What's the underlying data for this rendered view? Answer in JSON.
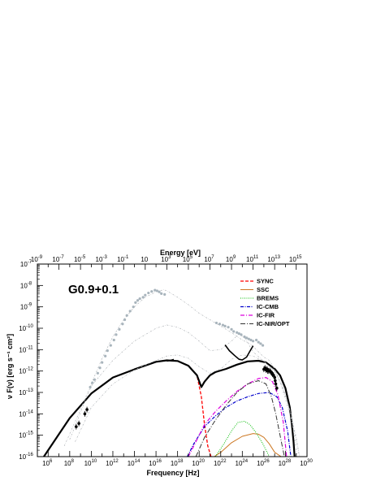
{
  "chart_data": {
    "type": "line",
    "title": "G0.9+0.1",
    "xlabel": "Frequency [Hz]",
    "ylabel": "ν F(ν) [erg s⁻¹ cm²]",
    "x2label": "Energy [eV]",
    "xscale": "log",
    "yscale": "log",
    "xlim": [
      100000.0,
      1e+30
    ],
    "ylim": [
      1e-16,
      1e-07
    ],
    "x2lim": [
      1e-09,
      1e+16
    ],
    "x_ticks": [
      {
        "base": "10",
        "exp": "6"
      },
      {
        "base": "10",
        "exp": "8"
      },
      {
        "base": "10",
        "exp": "10"
      },
      {
        "base": "10",
        "exp": "12"
      },
      {
        "base": "10",
        "exp": "14"
      },
      {
        "base": "10",
        "exp": "16"
      },
      {
        "base": "10",
        "exp": "18"
      },
      {
        "base": "10",
        "exp": "20"
      },
      {
        "base": "10",
        "exp": "22"
      },
      {
        "base": "10",
        "exp": "24"
      },
      {
        "base": "10",
        "exp": "26"
      },
      {
        "base": "10",
        "exp": "28"
      },
      {
        "base": "10",
        "exp": "30"
      }
    ],
    "x2_ticks": [
      {
        "base": "10",
        "exp": "-9"
      },
      {
        "base": "10",
        "exp": "-7"
      },
      {
        "base": "10",
        "exp": "-5"
      },
      {
        "base": "10",
        "exp": "-3"
      },
      {
        "base": "10",
        "exp": "-1"
      },
      {
        "base": "10",
        "exp": ""
      },
      {
        "base": "10",
        "exp": "3"
      },
      {
        "base": "10",
        "exp": "5"
      },
      {
        "base": "10",
        "exp": "7"
      },
      {
        "base": "10",
        "exp": "9"
      },
      {
        "base": "10",
        "exp": "11"
      },
      {
        "base": "10",
        "exp": "13"
      },
      {
        "base": "10",
        "exp": "15"
      }
    ],
    "y_ticks": [
      {
        "base": "10",
        "exp": "-7"
      },
      {
        "base": "10",
        "exp": "-8"
      },
      {
        "base": "10",
        "exp": "-9"
      },
      {
        "base": "10",
        "exp": "-10"
      },
      {
        "base": "10",
        "exp": "-11"
      },
      {
        "base": "10",
        "exp": "-12"
      },
      {
        "base": "10",
        "exp": "-13"
      },
      {
        "base": "10",
        "exp": "-14"
      },
      {
        "base": "10",
        "exp": "-15"
      },
      {
        "base": "10",
        "exp": "-16"
      }
    ],
    "legend": {
      "placement": "top-right"
    },
    "colors": {
      "sync": "#ff0000",
      "ssc": "#cc7722",
      "brems": "#00bb00",
      "ic_cmb": "#0000cc",
      "ic_fir": "#dd00dd",
      "ic_nir": "#333333",
      "total": "#000000",
      "sensitivity": "#b0b4b8"
    },
    "series": [
      {
        "name": "SYNC",
        "style": "dashed",
        "color": "#ff0000",
        "x_log": [
          5.6,
          8,
          10,
          12,
          14,
          16,
          17,
          18,
          19,
          19.8,
          20.2,
          20.5,
          20.8,
          21.1
        ],
        "y_log": [
          -16,
          -14.2,
          -13.05,
          -12.3,
          -11.92,
          -11.57,
          -11.5,
          -11.53,
          -11.75,
          -12.2,
          -13.2,
          -14.5,
          -15.5,
          -16
        ]
      },
      {
        "name": "SSC",
        "style": "solid",
        "color": "#cc7722",
        "x_log": [
          21.4,
          22,
          23,
          24,
          25,
          25.5,
          26,
          26.5,
          27,
          27.6
        ],
        "y_log": [
          -16,
          -15.8,
          -15.35,
          -15.05,
          -14.92,
          -14.95,
          -15.1,
          -15.4,
          -15.8,
          -16
        ]
      },
      {
        "name": "BREMS",
        "style": "dotted",
        "color": "#00bb00",
        "x_log": [
          21.5,
          22.3,
          23,
          23.6,
          24.2,
          24.7,
          25.3,
          25.9,
          26.5
        ],
        "y_log": [
          -16,
          -15.4,
          -14.8,
          -14.4,
          -14.35,
          -14.5,
          -14.9,
          -15.4,
          -16
        ]
      },
      {
        "name": "IC-CMB",
        "style": "dashdot",
        "color": "#0000cc",
        "x_log": [
          18.9,
          19.5,
          20.5,
          21.5,
          22.5,
          23.5,
          24.5,
          25.5,
          26.5,
          27.2,
          27.7,
          28.2,
          28.5
        ],
        "y_log": [
          -16,
          -15.4,
          -14.6,
          -14.1,
          -13.7,
          -13.4,
          -13.2,
          -13.05,
          -13.0,
          -13.2,
          -13.7,
          -14.8,
          -16
        ]
      },
      {
        "name": "IC-FIR",
        "style": "dashdot2",
        "color": "#dd00dd",
        "x_log": [
          19.0,
          19.7,
          20.5,
          21.5,
          22.5,
          23.5,
          24.5,
          25.5,
          26.2,
          26.8,
          27.3,
          27.8,
          28.1
        ],
        "y_log": [
          -16,
          -15.3,
          -14.5,
          -13.9,
          -13.4,
          -12.95,
          -12.6,
          -12.35,
          -12.3,
          -12.5,
          -13.1,
          -14.4,
          -16
        ]
      },
      {
        "name": "IC-NIR/OPT",
        "style": "longdash",
        "color": "#333333",
        "x_log": [
          19.7,
          20.5,
          21.5,
          22.5,
          23.5,
          24.5,
          25.5,
          26.2,
          26.7,
          27.1,
          27.5,
          27.9
        ],
        "y_log": [
          -16,
          -15.1,
          -14.3,
          -13.6,
          -13.0,
          -12.6,
          -12.45,
          -12.6,
          -13.2,
          -14.0,
          -15.0,
          -16
        ]
      },
      {
        "name": "",
        "style": "thick",
        "color": "#000000",
        "x_log": [
          5.6,
          8,
          10,
          12,
          14,
          16,
          17,
          18,
          19,
          19.8,
          20.2,
          20.5,
          21,
          21.5,
          22.5,
          23.5,
          24.5,
          25.5,
          26.2,
          27,
          27.5,
          28,
          28.4,
          28.6,
          28.75,
          28.85
        ],
        "y_log": [
          -16,
          -14.2,
          -13.05,
          -12.3,
          -11.92,
          -11.57,
          -11.5,
          -11.53,
          -11.75,
          -12.2,
          -12.75,
          -12.5,
          -12.2,
          -12.05,
          -11.9,
          -11.7,
          -11.55,
          -11.52,
          -11.6,
          -11.9,
          -12.2,
          -12.8,
          -13.7,
          -14.5,
          -15.3,
          -16
        ]
      },
      {
        "name": "",
        "style": "faint",
        "color": "#b0b4b8",
        "x_log": [
          7.5,
          9,
          10,
          11,
          12,
          13,
          14,
          15,
          16,
          16.7,
          17,
          18,
          19,
          20,
          21,
          22,
          23,
          24,
          24.8,
          25.2,
          25.6,
          26,
          26.5,
          27,
          27.5,
          28,
          28.5,
          29,
          29.3
        ],
        "y_log": [
          -15.5,
          -13.8,
          -12.6,
          -11.4,
          -10.4,
          -9.6,
          -9.0,
          -8.55,
          -8.3,
          -8.2,
          -8.25,
          -8.55,
          -8.9,
          -9.3,
          -9.6,
          -9.9,
          -10.2,
          -10.55,
          -10.75,
          -10.95,
          -11.15,
          -11.35,
          -11.5,
          -11.9,
          -12.5,
          -13.3,
          -14.2,
          -15.2,
          -16
        ]
      },
      {
        "name": "",
        "style": "faint",
        "color": "#b0b4b8",
        "x_log": [
          8,
          10,
          12,
          14,
          16,
          17,
          18,
          19,
          20,
          21,
          22,
          23,
          23.7,
          24.3,
          25,
          26,
          27,
          27.7,
          28.4,
          29,
          29.3
        ],
        "y_log": [
          -15.2,
          -12.7,
          -11.5,
          -10.6,
          -10.0,
          -9.85,
          -9.95,
          -10.2,
          -10.6,
          -11.05,
          -11.0,
          -10.6,
          -10.25,
          -10.5,
          -11.1,
          -11.55,
          -12.0,
          -12.7,
          -13.8,
          -15.1,
          -16
        ]
      },
      {
        "name": "",
        "style": "faint",
        "color": "#b0b4b8",
        "x_log": [
          8.5,
          10,
          12,
          14,
          16,
          17,
          18,
          19,
          20,
          21,
          22,
          23,
          24,
          25,
          26,
          27,
          27.8,
          28.5,
          29.1
        ],
        "y_log": [
          -15.3,
          -13.7,
          -12.6,
          -11.95,
          -11.5,
          -11.3,
          -11.25,
          -11.4,
          -11.8,
          -12.1,
          -11.9,
          -11.45,
          -11.25,
          -11.3,
          -11.55,
          -12.0,
          -12.8,
          -14.0,
          -16
        ]
      },
      {
        "name": "",
        "style": "sensitivity",
        "color": "#000000",
        "x_log": [
          22.4,
          22.8,
          23.3,
          23.7,
          24.0,
          24.4,
          24.7,
          25.0
        ],
        "y_log": [
          -10.78,
          -11.05,
          -11.28,
          -11.45,
          -11.48,
          -11.35,
          -11.08,
          -10.82
        ]
      },
      {
        "name": "",
        "style": "sensitivity",
        "color": "#000000",
        "x_log": [
          17.0,
          17.35,
          17.65
        ],
        "y_log": [
          -11.53,
          -11.5,
          -11.46
        ]
      }
    ],
    "points_gray": {
      "x_log": [
        9.9,
        10.1,
        10.3,
        10.6,
        10.8,
        11.0,
        11.3,
        11.5,
        11.8,
        12.1,
        12.3,
        12.6,
        12.9,
        13.1,
        13.3,
        13.6,
        13.9,
        14.1,
        14.3,
        14.5,
        14.8,
        15.0,
        15.3,
        15.6,
        15.9,
        16.1,
        16.3,
        16.5,
        16.8,
        21.6,
        21.9,
        22.2,
        22.4,
        22.7,
        23.0,
        23.2,
        23.5,
        23.7,
        23.9,
        24.2,
        24.4,
        24.6,
        24.8,
        25.0,
        25.3,
        25.5,
        25.7,
        25.9
      ],
      "y_log": [
        -12.75,
        -12.55,
        -12.4,
        -12.1,
        -11.85,
        -11.6,
        -11.3,
        -11.05,
        -10.8,
        -10.55,
        -10.3,
        -10.05,
        -9.8,
        -9.6,
        -9.4,
        -9.2,
        -9.0,
        -8.8,
        -8.7,
        -8.62,
        -8.55,
        -8.45,
        -8.35,
        -8.28,
        -8.22,
        -8.25,
        -8.3,
        -8.38,
        -8.42,
        -9.75,
        -9.8,
        -9.85,
        -9.9,
        -9.95,
        -10.05,
        -10.15,
        -10.2,
        -10.25,
        -10.3,
        -10.4,
        -10.45,
        -10.5,
        -10.55,
        -10.6,
        -10.55,
        -10.65,
        -10.72,
        -10.8
      ]
    },
    "points_data": {
      "x_log": [
        8.6,
        8.85,
        9.4,
        9.6,
        26.0,
        26.1,
        26.2,
        26.3,
        26.35,
        26.45,
        26.55,
        26.65,
        26.75,
        26.8,
        26.9,
        27.0,
        27.05,
        27.1,
        27.2
      ],
      "y_log": [
        -14.6,
        -14.45,
        -14.0,
        -13.8,
        -11.92,
        -11.85,
        -11.95,
        -11.9,
        -12.0,
        -12.0,
        -11.98,
        -12.05,
        -12.1,
        -12.15,
        -12.2,
        -12.3,
        -12.45,
        -12.6,
        -12.8
      ]
    }
  }
}
